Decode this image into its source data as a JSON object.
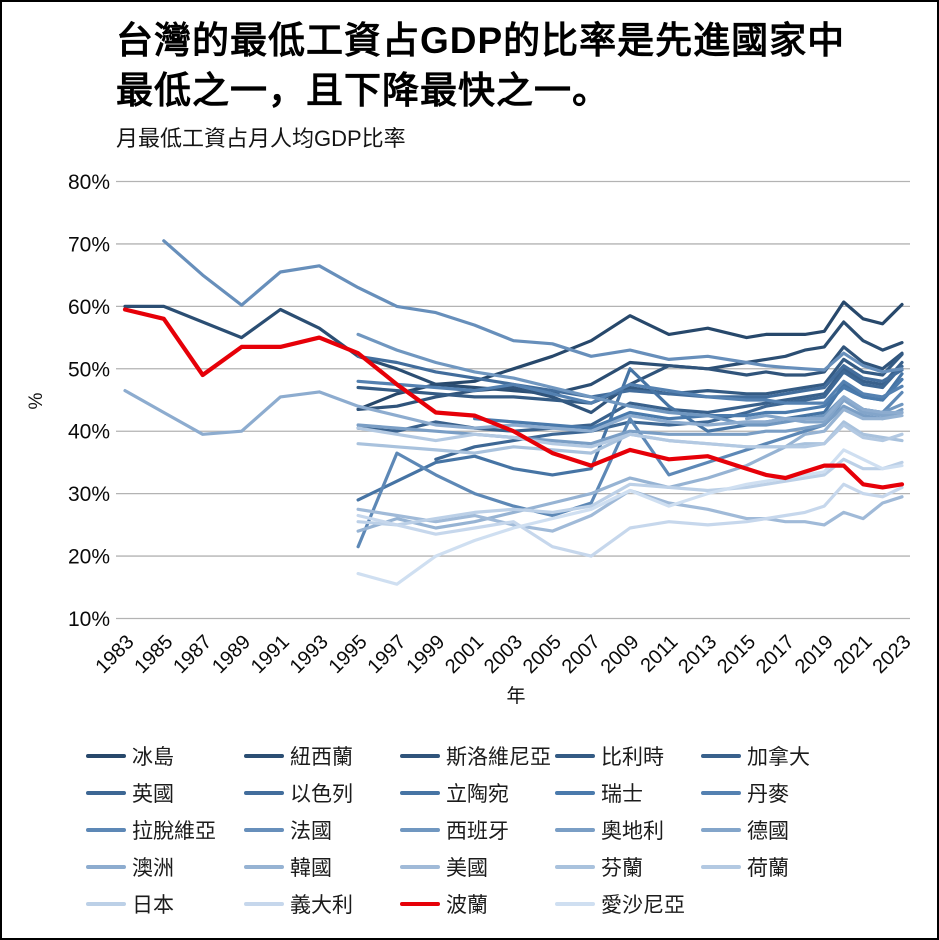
{
  "header": {
    "title_line1": "台灣的最低工資占GDP的比率是先進國家中",
    "title_line2": "最低之一，且下降最快之一。",
    "subtitle": "月最低工資占月人均GDP比率"
  },
  "chart_data": {
    "type": "line",
    "title": "月最低工資占月人均GDP比率",
    "xlabel": "年",
    "ylabel": "%",
    "xlim": [
      1983,
      2023
    ],
    "ylim": [
      10,
      80
    ],
    "grid": "horizontal",
    "grid_color": "#b3b3b3",
    "y_ticks": [
      80,
      70,
      60,
      50,
      40,
      30,
      20,
      10
    ],
    "y_tick_suffix": "%",
    "x_ticks": [
      1983,
      1985,
      1987,
      1989,
      1991,
      1993,
      1995,
      1997,
      1999,
      2001,
      2003,
      2005,
      2007,
      2009,
      2011,
      2013,
      2015,
      2017,
      2019,
      2021,
      2023
    ],
    "legend_position": "bottom",
    "highlight_series": "波蘭",
    "highlight_color": "#e60008",
    "x": [
      1983,
      1985,
      1987,
      1989,
      1991,
      1993,
      1995,
      1997,
      1999,
      2001,
      2003,
      2005,
      2007,
      2009,
      2011,
      2013,
      2015,
      2016,
      2017,
      2018,
      2019,
      2020,
      2021,
      2022,
      2023
    ],
    "series": [
      {
        "name": "冰島",
        "color": "#27486b",
        "values": [
          null,
          null,
          null,
          null,
          null,
          null,
          43.5,
          46,
          47.5,
          48,
          50,
          52,
          54.5,
          58.5,
          55.5,
          56.5,
          55,
          55.5,
          55.5,
          55.5,
          56,
          60.7,
          58,
          57.2,
          60.3
        ]
      },
      {
        "name": "紐西蘭",
        "color": "#2b4e73",
        "values": [
          60,
          60,
          57.5,
          55,
          59.5,
          56.5,
          52,
          50,
          47.5,
          47,
          46.5,
          46,
          47.5,
          51,
          50.5,
          50,
          51,
          51.5,
          52,
          53,
          53.5,
          57.5,
          54.5,
          53,
          54.2
        ]
      },
      {
        "name": "斯洛維尼亞",
        "color": "#30547b",
        "values": [
          null,
          null,
          null,
          null,
          null,
          null,
          43.5,
          44,
          45.5,
          46.5,
          47,
          45.5,
          43,
          47.5,
          50.5,
          50,
          49,
          49.5,
          49,
          49,
          49.5,
          53.5,
          51,
          50,
          52.5
        ]
      },
      {
        "name": "比利時",
        "color": "#345b84",
        "values": [
          null,
          null,
          null,
          null,
          null,
          null,
          47,
          46.5,
          46,
          45.5,
          45.5,
          45,
          44.5,
          47,
          46,
          46.5,
          46,
          46,
          46.5,
          47,
          47.5,
          51.5,
          49.5,
          49,
          52.3
        ]
      },
      {
        "name": "加拿大",
        "color": "#39618c",
        "values": [
          null,
          null,
          null,
          null,
          null,
          null,
          40.5,
          40,
          41.5,
          40.5,
          40,
          40.5,
          41,
          44.5,
          43.5,
          43,
          44,
          44.5,
          45,
          45.5,
          46,
          50,
          48,
          47.5,
          51
        ]
      },
      {
        "name": "英國",
        "color": "#3d6794",
        "values": [
          null,
          null,
          null,
          null,
          null,
          null,
          null,
          null,
          35.5,
          37.5,
          38.5,
          39.5,
          40,
          41.5,
          41,
          41.5,
          43,
          44,
          44.5,
          45,
          45.5,
          49.5,
          47.5,
          47,
          50.4
        ]
      },
      {
        "name": "以色列",
        "color": "#426d9c",
        "values": [
          null,
          null,
          null,
          null,
          null,
          null,
          52,
          51,
          49.5,
          48.5,
          47.5,
          46.5,
          45.5,
          46.5,
          46,
          45.5,
          45.5,
          45.5,
          46,
          46.5,
          47,
          50.5,
          48.5,
          48,
          49.8
        ]
      },
      {
        "name": "立陶宛",
        "color": "#4674a4",
        "values": [
          null,
          null,
          null,
          null,
          null,
          null,
          29,
          32,
          35,
          36,
          34,
          33,
          34,
          50,
          44,
          40,
          41,
          41.5,
          42,
          42.5,
          43,
          47.5,
          45.5,
          45,
          49.2
        ]
      },
      {
        "name": "瑞士",
        "color": "#4a7aac",
        "values": [
          null,
          null,
          null,
          null,
          null,
          null,
          null,
          null,
          null,
          42,
          41.5,
          41,
          40.5,
          43,
          42,
          42.5,
          42.5,
          43,
          43,
          43.5,
          44,
          47,
          45.5,
          45,
          48.3
        ]
      },
      {
        "name": "丹麥",
        "color": "#5481b1",
        "values": [
          null,
          null,
          null,
          null,
          null,
          null,
          48,
          47.5,
          47,
          46.5,
          47.5,
          46,
          44.5,
          47.5,
          46.5,
          45.5,
          45,
          45,
          44.5,
          44.5,
          44.5,
          48,
          46,
          45.5,
          47.2
        ]
      },
      {
        "name": "拉脫維亞",
        "color": "#5d88b6",
        "values": [
          null,
          null,
          null,
          null,
          null,
          null,
          21.5,
          36.5,
          33,
          30,
          28,
          26.5,
          28.5,
          42,
          33,
          35,
          37,
          38,
          39,
          40,
          41,
          45,
          43.5,
          43,
          46.2
        ]
      },
      {
        "name": "法國",
        "color": "#678fbb",
        "values": [
          null,
          70.5,
          65,
          60.2,
          65.5,
          66.5,
          63,
          60,
          59,
          57,
          54.5,
          54,
          52,
          53,
          51.5,
          52,
          51,
          50.5,
          50.2,
          50,
          49.8,
          52.5,
          50.5,
          49.5,
          50
        ]
      },
      {
        "name": "西班牙",
        "color": "#7097c0",
        "values": [
          null,
          null,
          null,
          null,
          null,
          null,
          55.5,
          53,
          51,
          49.5,
          48.5,
          47,
          45.5,
          44,
          43,
          42.5,
          41,
          41,
          41.5,
          42,
          42.5,
          45.5,
          43.5,
          43,
          44.3
        ]
      },
      {
        "name": "奧地利",
        "color": "#7a9ec5",
        "values": [
          null,
          null,
          null,
          null,
          null,
          null,
          41,
          40.5,
          40,
          39.5,
          39,
          38.5,
          38,
          40,
          39.5,
          39.5,
          39.5,
          40,
          40,
          40.5,
          41,
          44,
          42.5,
          42,
          43.5
        ]
      },
      {
        "name": "德國",
        "color": "#83a5ca",
        "values": [
          null,
          null,
          null,
          null,
          null,
          null,
          null,
          null,
          null,
          null,
          null,
          null,
          null,
          null,
          null,
          null,
          42,
          42.5,
          42,
          41.5,
          41.5,
          45,
          43,
          42.5,
          43
        ]
      },
      {
        "name": "澳洲",
        "color": "#8daccf",
        "values": [
          46.5,
          43,
          39.5,
          40,
          45.5,
          46.3,
          44,
          42.5,
          41,
          40.5,
          41,
          40.5,
          40,
          42.5,
          41.5,
          41,
          41.5,
          41.5,
          42,
          42,
          42,
          45.5,
          43.5,
          43,
          43
        ]
      },
      {
        "name": "韓國",
        "color": "#96b3d3",
        "values": [
          null,
          null,
          null,
          null,
          null,
          null,
          24,
          26,
          24.5,
          25.5,
          27,
          28.5,
          30,
          32.5,
          31,
          32.5,
          34.5,
          36,
          37.5,
          39.5,
          40,
          43.5,
          42,
          42,
          42.5
        ]
      },
      {
        "name": "美國",
        "color": "#a0bad8",
        "values": [
          null,
          null,
          null,
          null,
          null,
          null,
          27.5,
          26.5,
          25.5,
          26.5,
          25,
          24,
          26.5,
          30.5,
          28.5,
          27.5,
          26,
          26,
          25.5,
          25.5,
          25,
          27,
          26,
          28.5,
          29.5
        ]
      },
      {
        "name": "芬蘭",
        "color": "#a9c2dd",
        "values": [
          null,
          null,
          null,
          null,
          null,
          null,
          38,
          37.5,
          37,
          36.5,
          37.5,
          37,
          36.5,
          39.5,
          38.5,
          38,
          37.5,
          37.5,
          37.5,
          38,
          38,
          41.5,
          39.5,
          39,
          38.5
        ]
      },
      {
        "name": "荷蘭",
        "color": "#b3c9e2",
        "values": [
          null,
          null,
          null,
          null,
          null,
          null,
          40.5,
          39.5,
          38.5,
          39.5,
          39,
          38,
          37.5,
          39.5,
          38.5,
          38,
          37.5,
          37.5,
          37.5,
          37.5,
          38,
          41,
          39,
          38.5,
          39.5
        ]
      },
      {
        "name": "日本",
        "color": "#bcd0e7",
        "values": [
          null,
          null,
          null,
          null,
          null,
          null,
          25.5,
          25,
          26,
          27,
          27.5,
          27,
          28,
          31.5,
          31,
          30.5,
          31,
          31.5,
          32,
          32.5,
          33,
          35.5,
          34,
          34,
          35
        ]
      },
      {
        "name": "義大利",
        "color": "#c6d7ec",
        "values": [
          null,
          null,
          null,
          null,
          null,
          null,
          26.5,
          25,
          23.5,
          24.5,
          25.5,
          21.5,
          20,
          24.5,
          25.5,
          25,
          25.5,
          26,
          26.5,
          27,
          28,
          31.5,
          30,
          29.5,
          31
        ]
      },
      {
        "name": "波蘭",
        "color": "#e60008",
        "values": [
          59.5,
          58,
          49,
          53.5,
          53.5,
          55,
          52.5,
          47.5,
          43,
          42.5,
          40,
          36.5,
          34.5,
          37,
          35.5,
          36,
          34,
          33,
          32.5,
          33.5,
          34.5,
          34.5,
          31.5,
          31,
          31.5
        ]
      },
      {
        "name": "愛沙尼亞",
        "color": "#cfdff1",
        "values": [
          null,
          null,
          null,
          null,
          null,
          null,
          17.2,
          15.5,
          20,
          22.5,
          24.5,
          26,
          27.5,
          30.5,
          28,
          30,
          31.5,
          32,
          32.5,
          33,
          33.5,
          37,
          35.5,
          34,
          34.5
        ]
      }
    ]
  }
}
